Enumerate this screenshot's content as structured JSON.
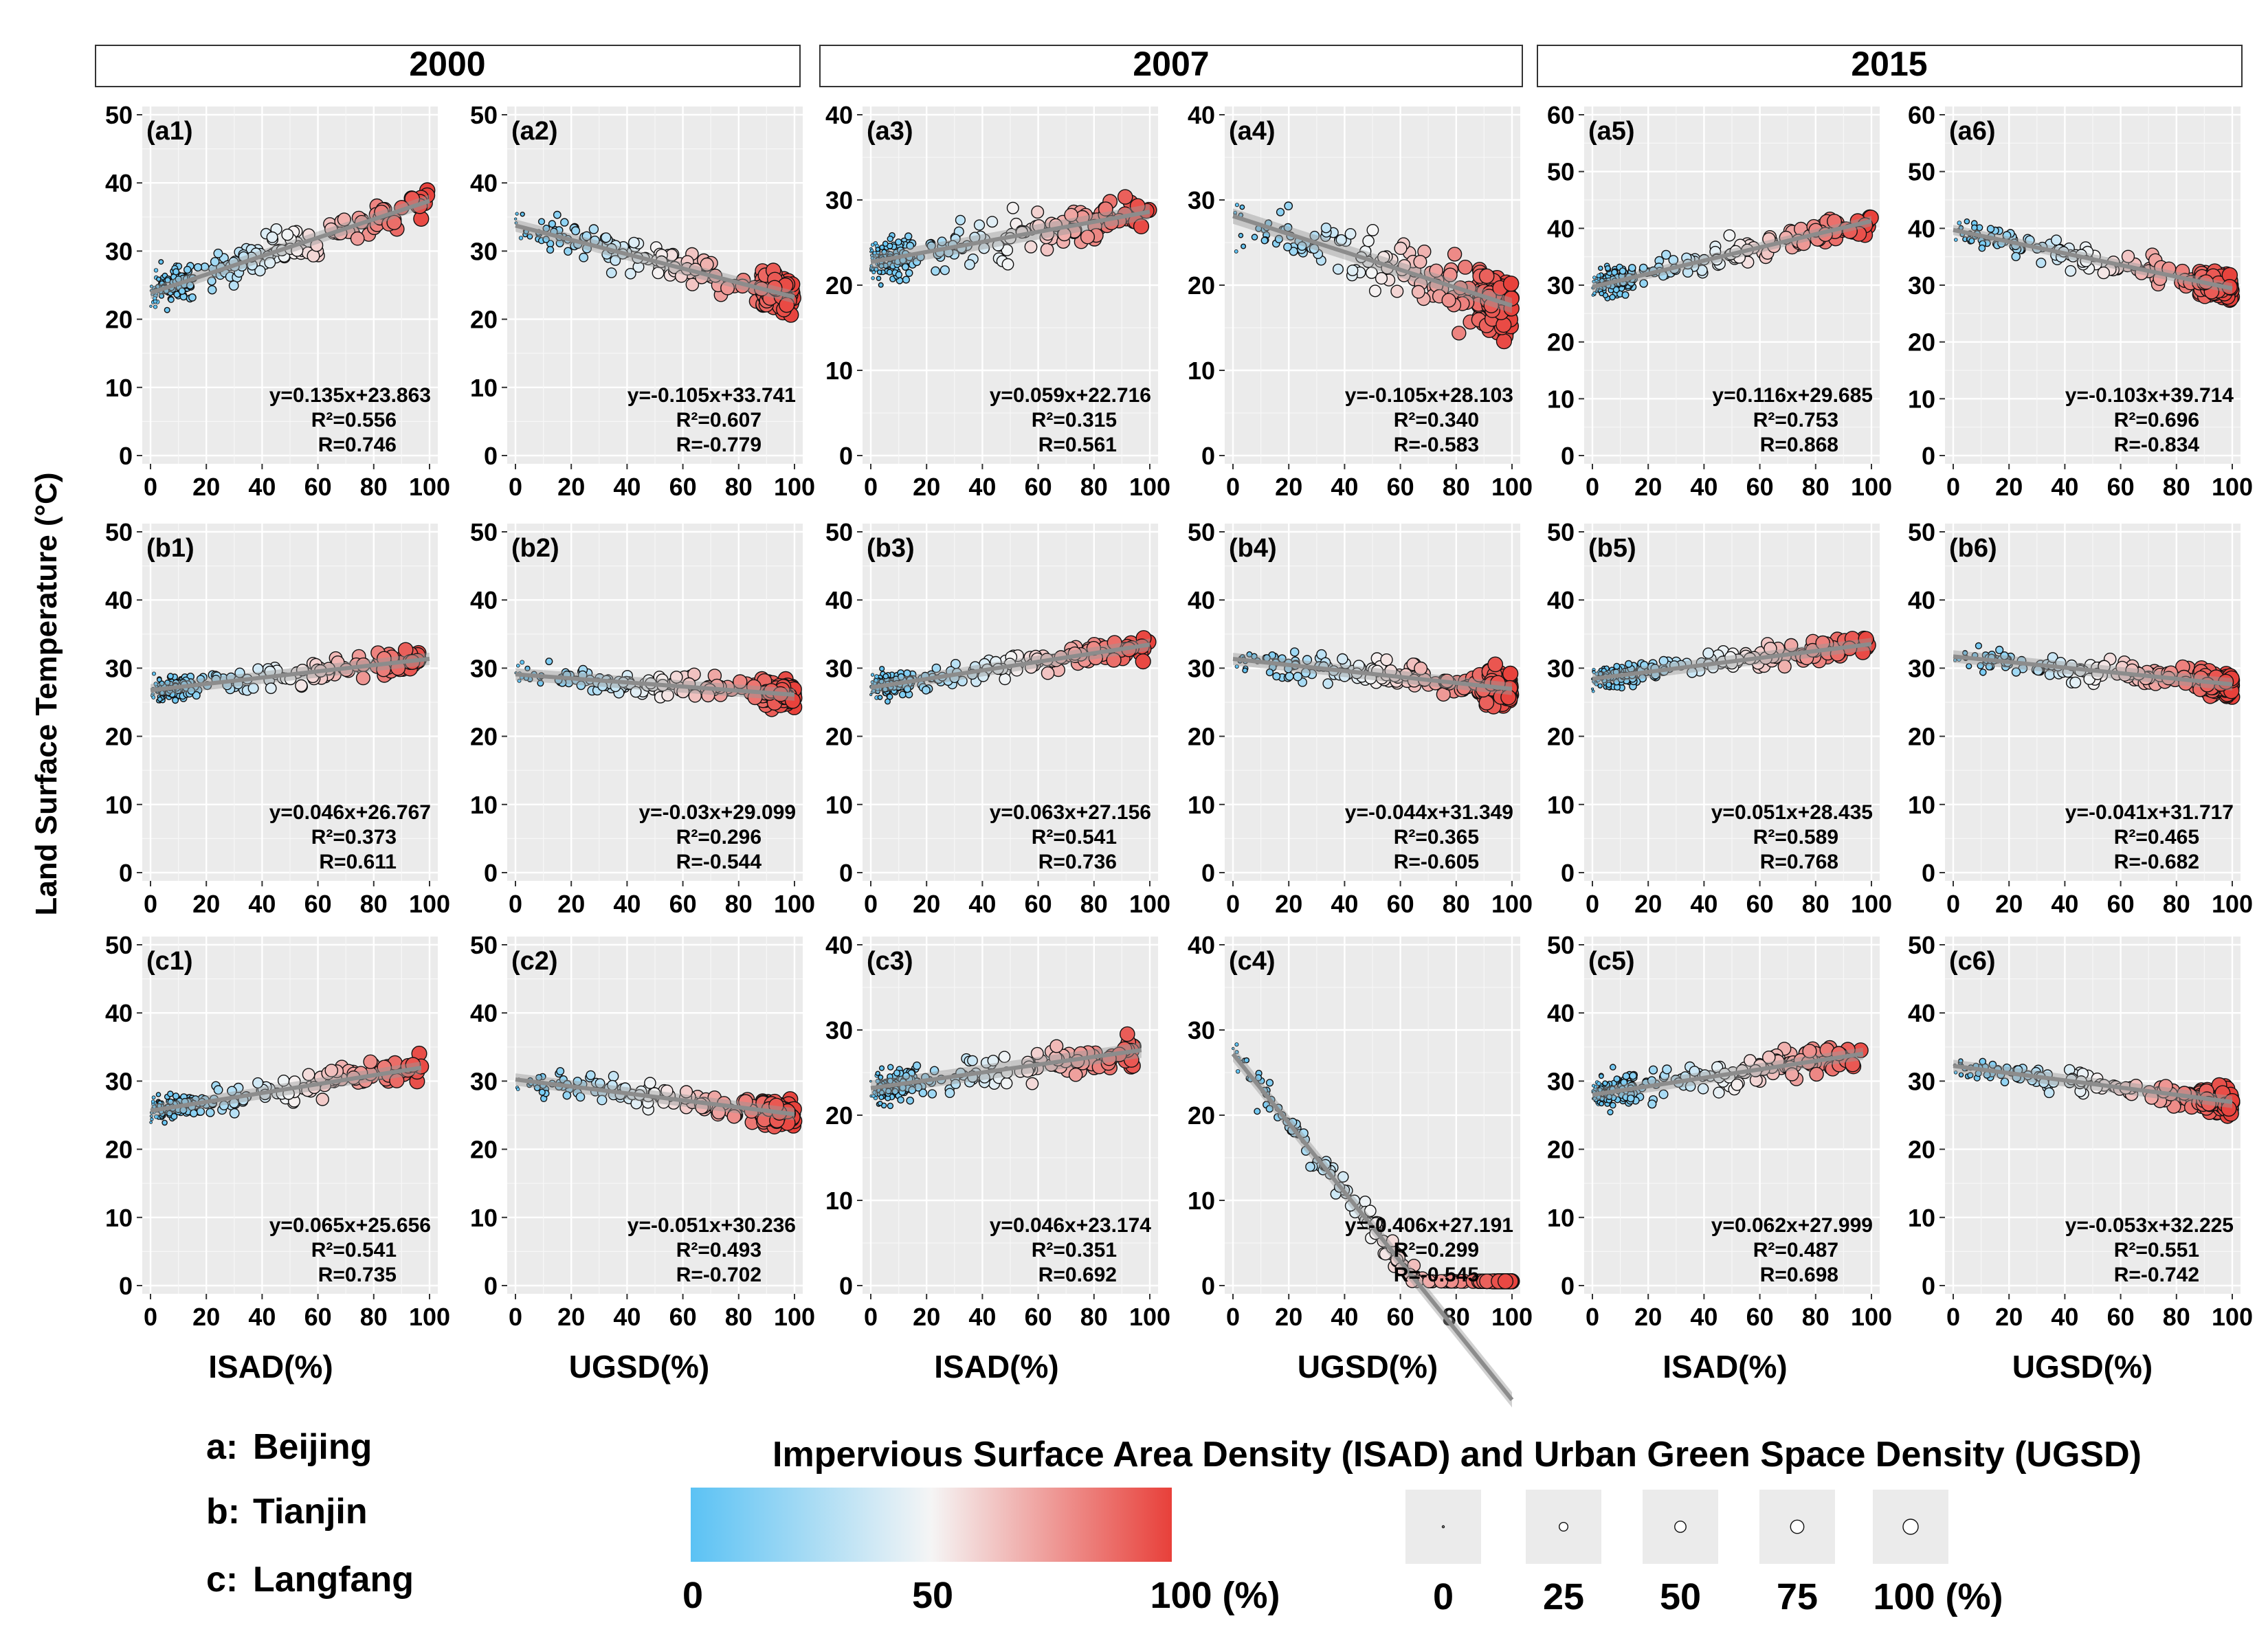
{
  "figure": {
    "ylabel": "Land Surface Temperature (°C)",
    "years": [
      "2000",
      "2007",
      "2015"
    ],
    "xlabels": [
      "ISAD(%)",
      "UGSD(%)",
      "ISAD(%)",
      "UGSD(%)",
      "ISAD(%)",
      "UGSD(%)"
    ],
    "legend": {
      "cities": [
        {
          "code": "a:",
          "name": "Beijing"
        },
        {
          "code": "b:",
          "name": "Tianjin"
        },
        {
          "code": "c:",
          "name": "Langfang"
        }
      ],
      "title": "Impervious Surface Area Density (ISAD) and Urban Green Space Density (UGSD)",
      "colorbar": {
        "labels": [
          "0",
          "50",
          "100 (%)"
        ],
        "colors": [
          "#5bc2f4",
          "#f5f5f5",
          "#e8403a"
        ]
      },
      "size_legend": {
        "labels": [
          "0",
          "25",
          "50",
          "75",
          "100 (%)"
        ],
        "values": [
          0,
          25,
          50,
          75,
          100
        ]
      }
    }
  },
  "chart_data": [
    {
      "id": "a1",
      "label": "(a1)",
      "type": "scatter",
      "xvar": "ISAD",
      "year": "2000",
      "city": "Beijing",
      "slope": 0.135,
      "intercept": 23.863,
      "eq": "y=0.135x+23.863",
      "r2": "R²=0.556",
      "r": "R=0.746",
      "ylim": [
        0,
        50
      ],
      "yticks": [
        "0",
        "10",
        "20",
        "30",
        "40",
        "50"
      ],
      "xlim": [
        0,
        100
      ],
      "xticks": [
        "0",
        "20",
        "40",
        "60",
        "80",
        "100"
      ],
      "spread": 2.2,
      "xmax": 100
    },
    {
      "id": "a2",
      "label": "(a2)",
      "type": "scatter",
      "xvar": "UGSD",
      "year": "2000",
      "city": "Beijing",
      "slope": -0.105,
      "intercept": 33.741,
      "eq": "y=-0.105x+33.741",
      "r2": "R²=0.607",
      "r": "R=-0.779",
      "ylim": [
        0,
        50
      ],
      "yticks": [
        "0",
        "10",
        "20",
        "30",
        "40",
        "50"
      ],
      "xlim": [
        0,
        100
      ],
      "xticks": [
        "0",
        "20",
        "40",
        "60",
        "80",
        "100"
      ],
      "spread": 2.2,
      "xmax": 100
    },
    {
      "id": "a3",
      "label": "(a3)",
      "type": "scatter",
      "xvar": "ISAD",
      "year": "2007",
      "city": "Beijing",
      "slope": 0.059,
      "intercept": 22.716,
      "eq": "y=0.059x+22.716",
      "r2": "R²=0.315",
      "r": "R=0.561",
      "ylim": [
        0,
        40
      ],
      "yticks": [
        "0",
        "10",
        "20",
        "30",
        "40"
      ],
      "xlim": [
        0,
        100
      ],
      "xticks": [
        "0",
        "20",
        "40",
        "60",
        "80",
        "100"
      ],
      "spread": 2.2,
      "xmax": 100
    },
    {
      "id": "a4",
      "label": "(a4)",
      "type": "scatter",
      "xvar": "UGSD",
      "year": "2007",
      "city": "Beijing",
      "slope": -0.105,
      "intercept": 28.103,
      "eq": "y=-0.105x+28.103",
      "r2": "R²=0.340",
      "r": "R=-0.583",
      "ylim": [
        0,
        40
      ],
      "yticks": [
        "0",
        "10",
        "20",
        "30",
        "40"
      ],
      "xlim": [
        0,
        100
      ],
      "xticks": [
        "0",
        "20",
        "40",
        "60",
        "80",
        "100"
      ],
      "spread": 2.8,
      "xmax": 100
    },
    {
      "id": "a5",
      "label": "(a5)",
      "type": "scatter",
      "xvar": "ISAD",
      "year": "2015",
      "city": "Beijing",
      "slope": 0.116,
      "intercept": 29.685,
      "eq": "y=0.116x+29.685",
      "r2": "R²=0.753",
      "r": "R=0.868",
      "ylim": [
        0,
        60
      ],
      "yticks": [
        "0",
        "10",
        "20",
        "30",
        "40",
        "50",
        "60"
      ],
      "xlim": [
        0,
        100
      ],
      "xticks": [
        "0",
        "20",
        "40",
        "60",
        "80",
        "100"
      ],
      "spread": 2.0,
      "xmax": 100
    },
    {
      "id": "a6",
      "label": "(a6)",
      "type": "scatter",
      "xvar": "UGSD",
      "year": "2015",
      "city": "Beijing",
      "slope": -0.103,
      "intercept": 39.714,
      "eq": "y=-0.103x+39.714",
      "r2": "R²=0.696",
      "r": "R=-0.834",
      "ylim": [
        0,
        60
      ],
      "yticks": [
        "0",
        "10",
        "20",
        "30",
        "40",
        "50",
        "60"
      ],
      "xlim": [
        0,
        100
      ],
      "xticks": [
        "0",
        "20",
        "40",
        "60",
        "80",
        "100"
      ],
      "spread": 2.0,
      "xmax": 100
    },
    {
      "id": "b1",
      "label": "(b1)",
      "type": "scatter",
      "xvar": "ISAD",
      "year": "2000",
      "city": "Tianjin",
      "slope": 0.046,
      "intercept": 26.767,
      "eq": "y=0.046x+26.767",
      "r2": "R²=0.373",
      "r": "R=0.611",
      "ylim": [
        0,
        50
      ],
      "yticks": [
        "0",
        "10",
        "20",
        "30",
        "40",
        "50"
      ],
      "xlim": [
        0,
        100
      ],
      "xticks": [
        "0",
        "20",
        "40",
        "60",
        "80",
        "100"
      ],
      "spread": 1.5,
      "xmax": 100
    },
    {
      "id": "b2",
      "label": "(b2)",
      "type": "scatter",
      "xvar": "UGSD",
      "year": "2000",
      "city": "Tianjin",
      "slope": -0.03,
      "intercept": 29.099,
      "eq": "y=-0.03x+29.099",
      "r2": "R²=0.296",
      "r": "R=-0.544",
      "ylim": [
        0,
        50
      ],
      "yticks": [
        "0",
        "10",
        "20",
        "30",
        "40",
        "50"
      ],
      "xlim": [
        0,
        100
      ],
      "xticks": [
        "0",
        "20",
        "40",
        "60",
        "80",
        "100"
      ],
      "spread": 1.5,
      "xmax": 100
    },
    {
      "id": "b3",
      "label": "(b3)",
      "type": "scatter",
      "xvar": "ISAD",
      "year": "2007",
      "city": "Tianjin",
      "slope": 0.063,
      "intercept": 27.156,
      "eq": "y=0.063x+27.156",
      "r2": "R²=0.541",
      "r": "R=0.736",
      "ylim": [
        0,
        50
      ],
      "yticks": [
        "0",
        "10",
        "20",
        "30",
        "40",
        "50"
      ],
      "xlim": [
        0,
        100
      ],
      "xticks": [
        "0",
        "20",
        "40",
        "60",
        "80",
        "100"
      ],
      "spread": 1.5,
      "xmax": 100
    },
    {
      "id": "b4",
      "label": "(b4)",
      "type": "scatter",
      "xvar": "UGSD",
      "year": "2007",
      "city": "Tianjin",
      "slope": -0.044,
      "intercept": 31.349,
      "eq": "y=-0.044x+31.349",
      "r2": "R²=0.365",
      "r": "R=-0.605",
      "ylim": [
        0,
        50
      ],
      "yticks": [
        "0",
        "10",
        "20",
        "30",
        "40",
        "50"
      ],
      "xlim": [
        0,
        100
      ],
      "xticks": [
        "0",
        "20",
        "40",
        "60",
        "80",
        "100"
      ],
      "spread": 1.8,
      "xmax": 100
    },
    {
      "id": "b5",
      "label": "(b5)",
      "type": "scatter",
      "xvar": "ISAD",
      "year": "2015",
      "city": "Tianjin",
      "slope": 0.051,
      "intercept": 28.435,
      "eq": "y=0.051x+28.435",
      "r2": "R²=0.589",
      "r": "R=0.768",
      "ylim": [
        0,
        50
      ],
      "yticks": [
        "0",
        "10",
        "20",
        "30",
        "40",
        "50"
      ],
      "xlim": [
        0,
        100
      ],
      "xticks": [
        "0",
        "20",
        "40",
        "60",
        "80",
        "100"
      ],
      "spread": 1.4,
      "xmax": 100
    },
    {
      "id": "b6",
      "label": "(b6)",
      "type": "scatter",
      "xvar": "UGSD",
      "year": "2015",
      "city": "Tianjin",
      "slope": -0.041,
      "intercept": 31.717,
      "eq": "y=-0.041x+31.717",
      "r2": "R²=0.465",
      "r": "R=-0.682",
      "ylim": [
        0,
        50
      ],
      "yticks": [
        "0",
        "10",
        "20",
        "30",
        "40",
        "50"
      ],
      "xlim": [
        0,
        100
      ],
      "xticks": [
        "0",
        "20",
        "40",
        "60",
        "80",
        "100"
      ],
      "spread": 1.5,
      "xmax": 100
    },
    {
      "id": "c1",
      "label": "(c1)",
      "type": "scatter",
      "xvar": "ISAD",
      "year": "2000",
      "city": "Langfang",
      "slope": 0.065,
      "intercept": 25.656,
      "eq": "y=0.065x+25.656",
      "r2": "R²=0.541",
      "r": "R=0.735",
      "ylim": [
        0,
        50
      ],
      "yticks": [
        "0",
        "10",
        "20",
        "30",
        "40",
        "50"
      ],
      "xlim": [
        0,
        100
      ],
      "xticks": [
        "0",
        "20",
        "40",
        "60",
        "80",
        "100"
      ],
      "spread": 1.5,
      "xmax": 97
    },
    {
      "id": "c2",
      "label": "(c2)",
      "type": "scatter",
      "xvar": "UGSD",
      "year": "2000",
      "city": "Langfang",
      "slope": -0.051,
      "intercept": 30.236,
      "eq": "y=-0.051x+30.236",
      "r2": "R²=0.493",
      "r": "R=-0.702",
      "ylim": [
        0,
        50
      ],
      "yticks": [
        "0",
        "10",
        "20",
        "30",
        "40",
        "50"
      ],
      "xlim": [
        0,
        100
      ],
      "xticks": [
        "0",
        "20",
        "40",
        "60",
        "80",
        "100"
      ],
      "spread": 1.5,
      "xmax": 100
    },
    {
      "id": "c3",
      "label": "(c3)",
      "type": "scatter",
      "xvar": "ISAD",
      "year": "2007",
      "city": "Langfang",
      "slope": 0.046,
      "intercept": 23.174,
      "eq": "y=0.046x+23.174",
      "r2": "R²=0.351",
      "r": "R=0.692",
      "ylim": [
        0,
        40
      ],
      "yticks": [
        "0",
        "10",
        "20",
        "30",
        "40"
      ],
      "xlim": [
        0,
        100
      ],
      "xticks": [
        "0",
        "20",
        "40",
        "60",
        "80",
        "100"
      ],
      "spread": 1.7,
      "xmax": 97
    },
    {
      "id": "c4",
      "label": "(c4)",
      "type": "scatter",
      "xvar": "UGSD",
      "year": "2007",
      "city": "Langfang",
      "slope": -0.406,
      "intercept": 27.191,
      "eq": "y=-0.406x+27.191",
      "r2": "R²=0.299",
      "r": "R=-0.545",
      "ylim": [
        0,
        40
      ],
      "yticks": [
        "0",
        "10",
        "20",
        "30",
        "40"
      ],
      "xlim": [
        0,
        100
      ],
      "xticks": [
        "0",
        "20",
        "40",
        "60",
        "80",
        "100"
      ],
      "spread": 1.8,
      "xmax": 100
    },
    {
      "id": "c5",
      "label": "(c5)",
      "type": "scatter",
      "xvar": "ISAD",
      "year": "2015",
      "city": "Langfang",
      "slope": 0.062,
      "intercept": 27.999,
      "eq": "y=0.062x+27.999",
      "r2": "R²=0.487",
      "r": "R=0.698",
      "ylim": [
        0,
        50
      ],
      "yticks": [
        "0",
        "10",
        "20",
        "30",
        "40",
        "50"
      ],
      "xlim": [
        0,
        100
      ],
      "xticks": [
        "0",
        "20",
        "40",
        "60",
        "80",
        "100"
      ],
      "spread": 2.0,
      "xmax": 97
    },
    {
      "id": "c6",
      "label": "(c6)",
      "type": "scatter",
      "xvar": "UGSD",
      "year": "2015",
      "city": "Langfang",
      "slope": -0.053,
      "intercept": 32.225,
      "eq": "y=-0.053x+32.225",
      "r2": "R²=0.551",
      "r": "R=-0.742",
      "ylim": [
        0,
        50
      ],
      "yticks": [
        "0",
        "10",
        "20",
        "30",
        "40",
        "50"
      ],
      "xlim": [
        0,
        100
      ],
      "xticks": [
        "0",
        "20",
        "40",
        "60",
        "80",
        "100"
      ],
      "spread": 1.4,
      "xmax": 100
    }
  ]
}
